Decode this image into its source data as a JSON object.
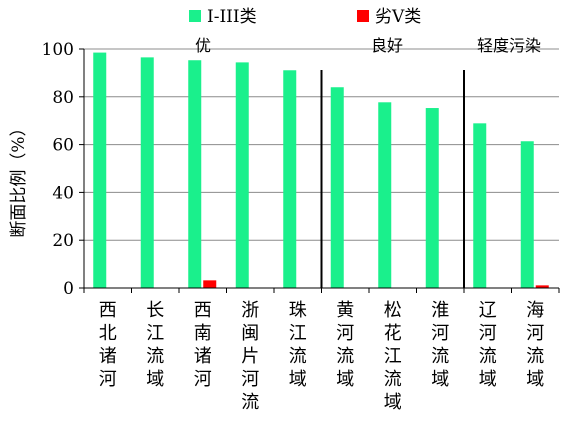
{
  "chart_data": {
    "type": "bar",
    "title": "",
    "xlabel": "",
    "ylabel": "断面比例（%）",
    "ylim": [
      0,
      100
    ],
    "yticks": [
      0,
      20,
      40,
      60,
      80,
      100
    ],
    "grid": "horizontal",
    "legend_position": "top",
    "categories": [
      "西北诸河",
      "长江流域",
      "西南诸河",
      "浙闽片河流",
      "珠江流域",
      "黄河流域",
      "松花江流域",
      "淮河流域",
      "辽河流域",
      "海河流域"
    ],
    "series": [
      {
        "name": "I-III类",
        "color": "#1af08c",
        "values": [
          98.5,
          96.5,
          95.3,
          94.4,
          91.1,
          84.0,
          77.7,
          75.3,
          68.9,
          61.4
        ]
      },
      {
        "name": "劣V类",
        "color": "#ff0000",
        "values": [
          0,
          0,
          3.2,
          0,
          0,
          0,
          0,
          0,
          0,
          1.1
        ]
      }
    ],
    "annotations": [
      {
        "text": "优",
        "from_index": 0,
        "to_index": 4
      },
      {
        "text": "良好",
        "from_index": 5,
        "to_index": 7
      },
      {
        "text": "轻度污染",
        "from_index": 8,
        "to_index": 9
      }
    ],
    "separators_after_index": [
      4,
      7
    ]
  }
}
